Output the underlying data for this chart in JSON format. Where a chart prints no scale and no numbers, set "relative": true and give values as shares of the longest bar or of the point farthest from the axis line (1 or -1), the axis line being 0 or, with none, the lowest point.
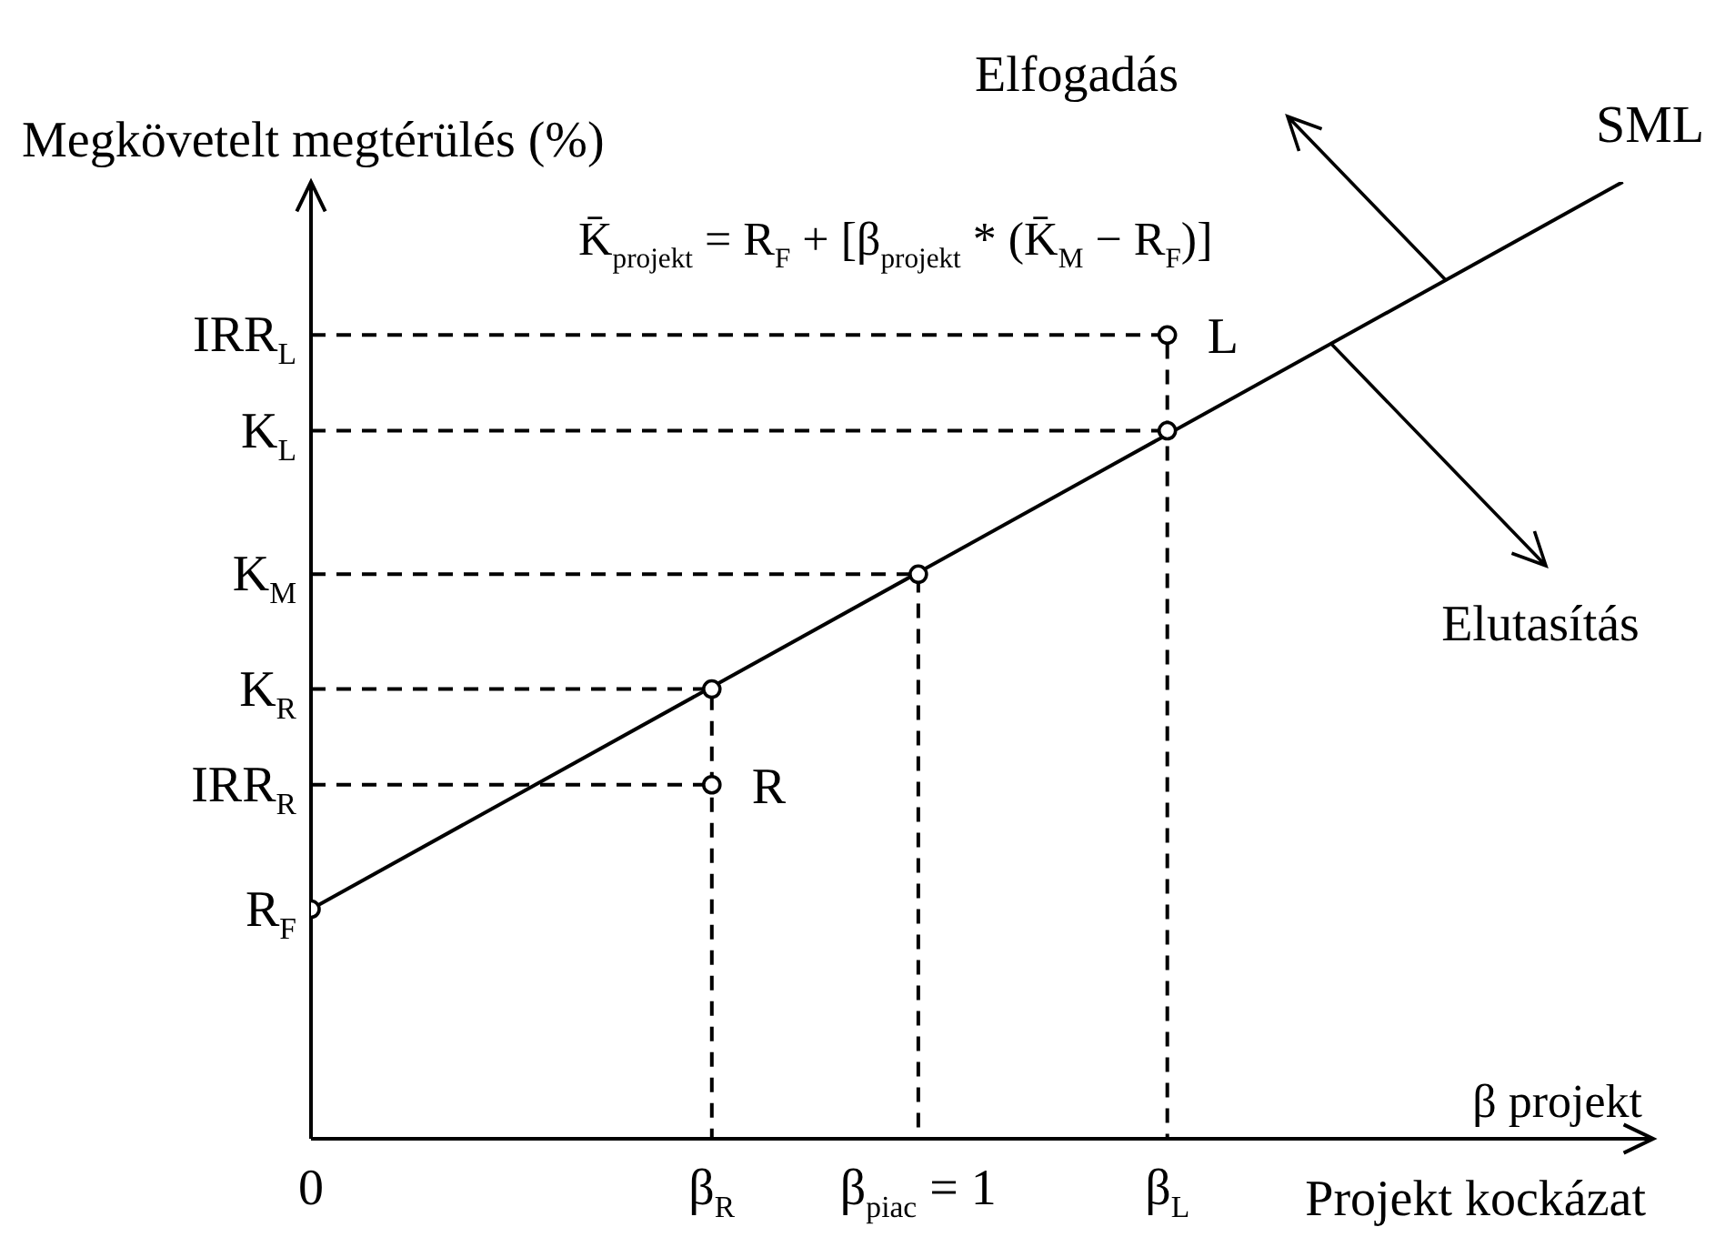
{
  "chart_data": {
    "type": "line",
    "relative": true,
    "ylabel": "Megkövetelt megtérülés (%)",
    "xlabel": "β projekt",
    "xlim": [
      0,
      2.21
    ],
    "xticks": [
      0,
      {
        "value": 0.66,
        "label": "β$_{R}$"
      },
      {
        "value": 1,
        "label": "β$_{piac}$ = 1"
      },
      {
        "value": 1.41,
        "label": "β$_{L}$"
      }
    ],
    "series": [
      {
        "color": "#000000",
        "line_style": "dashed",
        "x": [
          0,
          1.41,
          1.41
        ],
        "values": [
          0.84,
          0.84,
          0
        ]
      },
      {
        "color": "#000000",
        "line_style": "dashed",
        "x": [
          0,
          1.41
        ],
        "values": [
          0.74,
          0.74
        ]
      },
      {
        "color": "#000000",
        "line_style": "dashed",
        "x": [
          0,
          1,
          1
        ],
        "values": [
          0.59,
          0.59,
          0
        ]
      },
      {
        "color": "#000000",
        "line_style": "dashed",
        "x": [
          0,
          0.66,
          0.66
        ],
        "values": [
          0.47,
          0.47,
          0
        ]
      },
      {
        "color": "#000000",
        "line_style": "dashed",
        "x": [
          0,
          0.66
        ],
        "values": [
          0.37,
          0.37
        ]
      },
      {
        "name": "SML",
        "color": "#000000",
        "x": [
          0,
          2.16
        ],
        "values": [
          0.24,
          1
        ]
      },
      {
        "type": "scatter",
        "color": "#000000",
        "marker": "circle",
        "x": [
          0,
          0.66,
          1,
          1.41,
          0.66,
          1.41
        ],
        "values": [
          0.24,
          0.47,
          0.59,
          0.74,
          0.37,
          0.84
        ]
      }
    ],
    "annotations": [
      {
        "text": "R$_{F}$",
        "x": 0,
        "y": 0.24
      },
      {
        "text": "IRR$_{R}$",
        "x": 0,
        "y": 0.37
      },
      {
        "text": "K$_{R}$",
        "x": 0,
        "y": 0.47
      },
      {
        "text": "K$_{M}$",
        "x": 0,
        "y": 0.59
      },
      {
        "text": "K$_{L}$",
        "x": 0,
        "y": 0.74
      },
      {
        "text": "IRR$_{L}$",
        "x": 0,
        "y": 0.84
      },
      {
        "text": "R",
        "x": 0.66,
        "y": 0.37
      },
      {
        "text": "L",
        "x": 1.41,
        "y": 0.84
      },
      "K̄$_{projekt}$ = R$_{F}$ + [β$_{projekt}$ * (K̄$_{M}$ − R$_{F}$)]",
      "Elfogadás",
      "Elutasítás",
      "Projekt kockázat"
    ]
  }
}
